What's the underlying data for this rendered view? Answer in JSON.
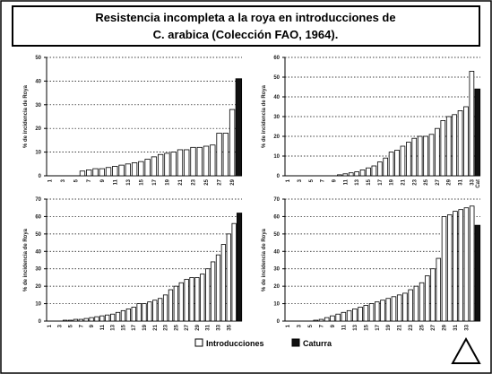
{
  "title_lines": [
    "Resistencia incompleta a la roya en introducciones de",
    "C. arabica (Colección FAO, 1964)."
  ],
  "legend": [
    {
      "name": "Introducciones",
      "color": "#ffffff"
    },
    {
      "name": "Caturra",
      "color": "#111111"
    }
  ],
  "chart_data": [
    {
      "type": "bar",
      "y_label": "% de incidencia de Roya",
      "ylim": [
        0,
        50
      ],
      "yticks": [
        0,
        10,
        20,
        30,
        40,
        50
      ],
      "grid": true,
      "categories": [
        "1",
        null,
        "3",
        null,
        "5",
        null,
        "7",
        null,
        "9",
        null,
        "11",
        null,
        "13",
        null,
        "15",
        null,
        "17",
        null,
        "19",
        null,
        "21",
        null,
        "23",
        null,
        "25",
        null,
        "27",
        null,
        "29"
      ],
      "values": [
        0,
        0,
        0,
        0,
        0,
        2,
        2.5,
        3,
        3,
        3.5,
        4,
        4.5,
        5,
        5.5,
        6,
        7,
        8,
        9,
        9.5,
        10,
        11,
        11,
        12,
        12,
        12.5,
        13,
        18,
        18,
        28
      ],
      "caturra": 41
    },
    {
      "type": "bar",
      "y_label": "% de incidencia de Roya",
      "ylim": [
        0,
        60
      ],
      "yticks": [
        0,
        10,
        20,
        30,
        40,
        50,
        60
      ],
      "grid": true,
      "categories": [
        "1",
        null,
        "3",
        null,
        "5",
        null,
        "7",
        null,
        "9",
        null,
        "11",
        null,
        "13",
        null,
        "15",
        null,
        "17",
        null,
        "19",
        null,
        "21",
        null,
        "23",
        null,
        "25",
        null,
        "27",
        null,
        "29",
        null,
        "31",
        null,
        "33"
      ],
      "values": [
        0,
        0,
        0,
        0,
        0,
        0,
        0,
        0,
        0,
        0.5,
        1,
        1.5,
        2,
        3,
        4,
        5,
        7,
        9,
        12,
        13,
        15,
        17,
        19,
        20,
        20,
        21,
        24,
        28,
        30,
        31,
        33,
        35,
        53
      ],
      "caturra": 44,
      "caturra_category": "Cat"
    },
    {
      "type": "bar",
      "y_label": "% de incidencia de Roya",
      "ylim": [
        0,
        70
      ],
      "yticks": [
        0,
        10,
        20,
        30,
        40,
        50,
        60,
        70
      ],
      "grid": true,
      "categories": [
        "1",
        null,
        "3",
        null,
        "5",
        null,
        "7",
        null,
        "9",
        null,
        "11",
        null,
        "13",
        null,
        "15",
        null,
        "17",
        null,
        "19",
        null,
        "21",
        null,
        "23",
        null,
        "25",
        null,
        "27",
        null,
        "29",
        null,
        "31",
        null,
        "33",
        null,
        "35",
        null
      ],
      "values": [
        0,
        0,
        0,
        0.5,
        0.5,
        1,
        1,
        1.5,
        2,
        2.5,
        3,
        3.5,
        4,
        5,
        6,
        7,
        8,
        10,
        10,
        11,
        12,
        13,
        15,
        18,
        20,
        22,
        24,
        25,
        25,
        27,
        30,
        34,
        38,
        44,
        50,
        56
      ],
      "caturra": 62
    },
    {
      "type": "bar",
      "y_label": "% de incidencia de Roya",
      "ylim": [
        0,
        70
      ],
      "yticks": [
        0,
        10,
        20,
        30,
        40,
        50,
        60,
        70
      ],
      "grid": true,
      "categories": [
        "1",
        null,
        "3",
        null,
        "5",
        null,
        "7",
        null,
        "9",
        null,
        "11",
        null,
        "13",
        null,
        "15",
        null,
        "17",
        null,
        "19",
        null,
        "21",
        null,
        "23",
        null,
        "25",
        null,
        "27",
        null,
        "29",
        null,
        "31",
        null,
        "33",
        null
      ],
      "values": [
        0,
        0,
        0,
        0,
        0,
        0.5,
        1,
        2,
        3,
        4,
        5,
        6,
        7,
        8,
        9,
        10,
        11,
        12,
        13,
        14,
        15,
        16,
        18,
        20,
        22,
        26,
        30,
        36,
        60,
        61,
        63,
        64,
        65,
        66
      ],
      "caturra": 55
    }
  ]
}
